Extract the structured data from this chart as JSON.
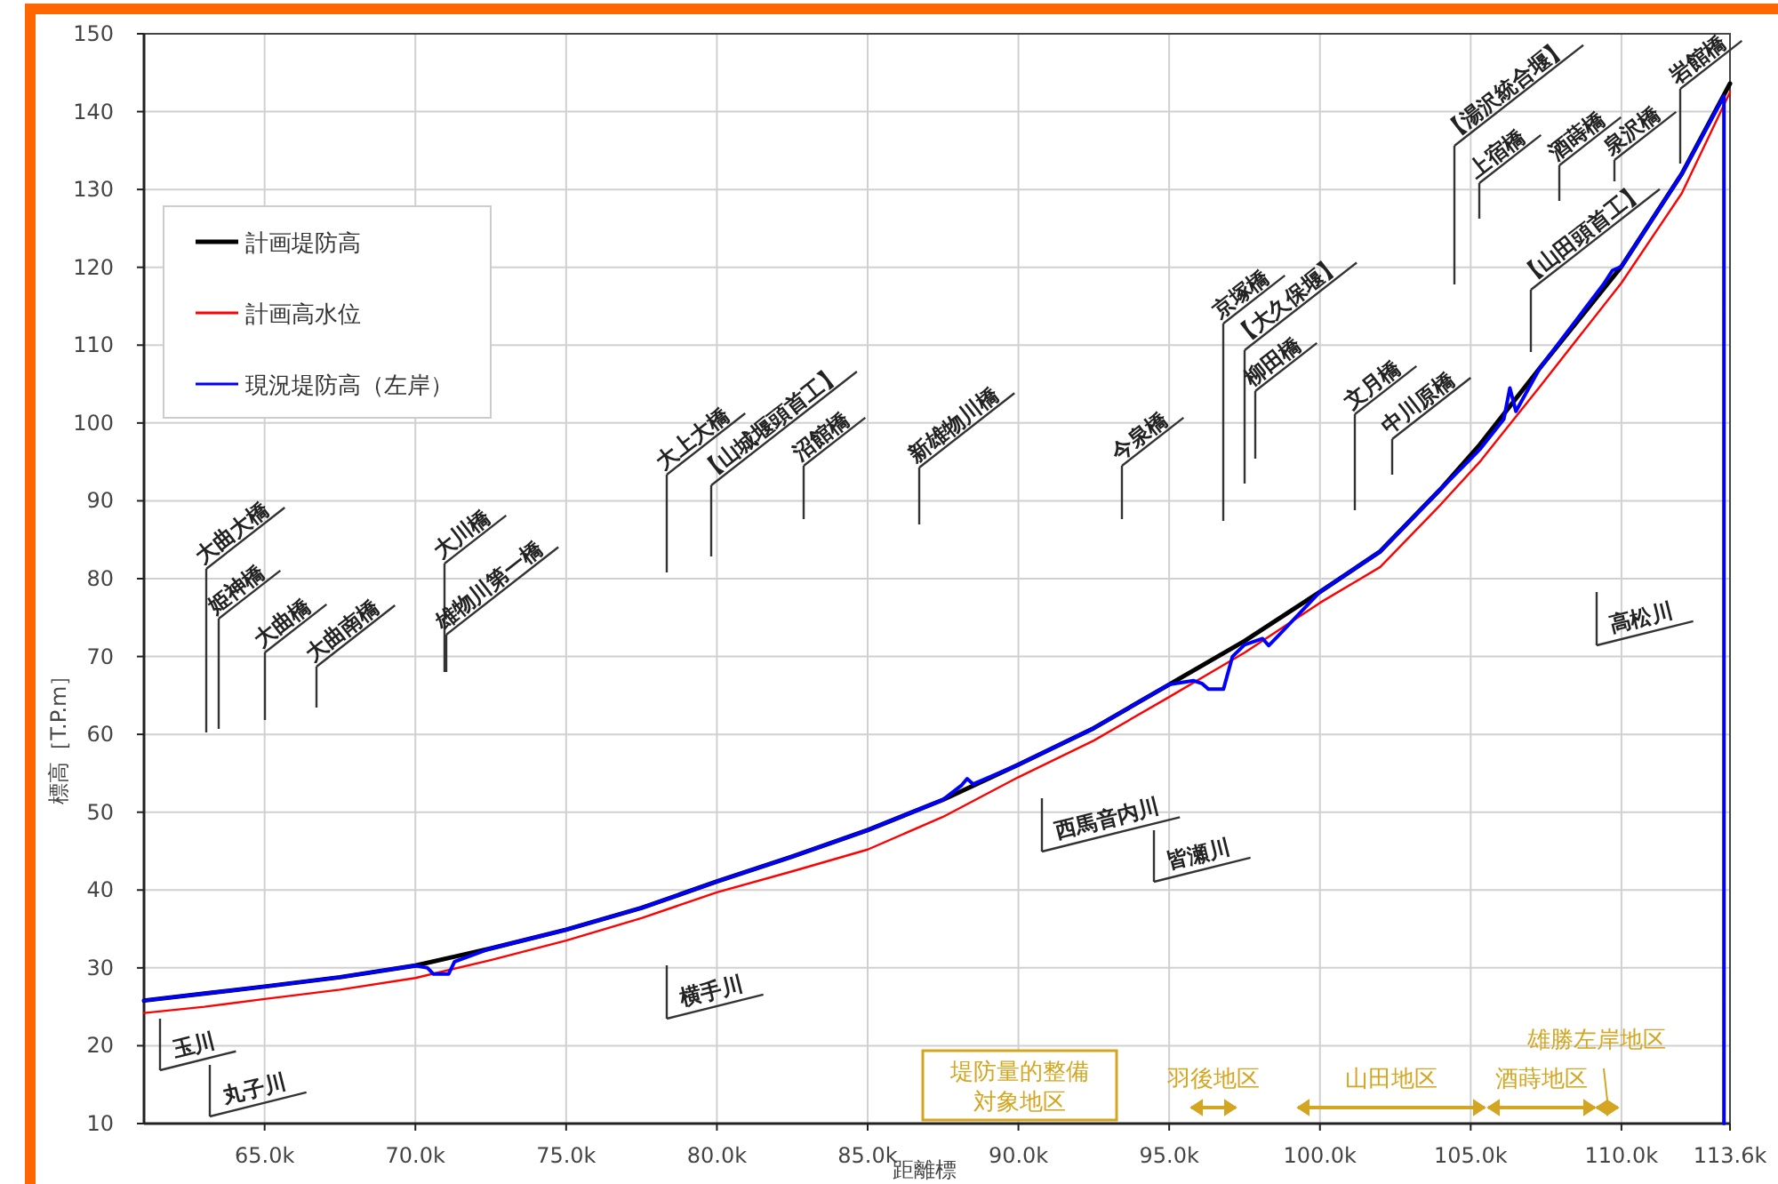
{
  "chart_data": {
    "type": "line",
    "xlabel": "距離標",
    "ylabel": "標高［T.P.m］",
    "xlim": [
      61,
      113.6
    ],
    "ylim": [
      10,
      150
    ],
    "xticks": [
      {
        "value": 65,
        "label": "65.0k"
      },
      {
        "value": 70,
        "label": "70.0k"
      },
      {
        "value": 75,
        "label": "75.0k"
      },
      {
        "value": 80,
        "label": "80.0k"
      },
      {
        "value": 85,
        "label": "85.0k"
      },
      {
        "value": 90,
        "label": "90.0k"
      },
      {
        "value": 95,
        "label": "95.0k"
      },
      {
        "value": 100,
        "label": "100.0k"
      },
      {
        "value": 105,
        "label": "105.0k"
      },
      {
        "value": 110,
        "label": "110.0k"
      },
      {
        "value": 113.6,
        "label": "113.6k"
      }
    ],
    "yticks": [
      10,
      20,
      30,
      40,
      50,
      60,
      70,
      80,
      90,
      100,
      110,
      120,
      130,
      140,
      150
    ],
    "grid": true,
    "legend": "top left",
    "marker": "none",
    "line_style": "solid",
    "series": [
      {
        "name": "計画堤防高",
        "color": "#000000",
        "x": [
          61,
          63,
          65,
          67.5,
          70,
          72.5,
          75,
          77.5,
          80,
          82.5,
          85,
          87.5,
          90,
          92.5,
          95,
          97.5,
          100,
          102,
          104,
          105.3,
          107.3,
          110,
          112,
          113.6
        ],
        "values": [
          25.8,
          26.7,
          27.6,
          28.8,
          30.3,
          32.5,
          34.9,
          37.7,
          41.1,
          44.3,
          47.7,
          51.6,
          56.1,
          60.8,
          66.4,
          72.0,
          78.3,
          83.5,
          91.5,
          97.2,
          107.1,
          120.1,
          132,
          143.6
        ]
      },
      {
        "name": "計画高水位",
        "color": "#ff0000",
        "x": [
          61,
          63,
          65,
          67.5,
          70,
          72.5,
          75,
          77.5,
          80,
          82.5,
          85,
          87.5,
          90,
          92.5,
          95,
          97.5,
          100,
          102,
          104,
          105.3,
          107.3,
          110,
          112,
          113.6
        ],
        "values": [
          24.2,
          25.0,
          26.0,
          27.2,
          28.7,
          31.0,
          33.5,
          36.4,
          39.7,
          42.4,
          45.2,
          49.4,
          54.5,
          59.2,
          64.8,
          70.5,
          76.9,
          81.5,
          89.5,
          95.0,
          104.7,
          118,
          129.5,
          142.5
        ]
      },
      {
        "name": "現況堤防高（左岸）",
        "color": "#0000ff",
        "x": [
          61,
          63,
          65,
          67.5,
          70,
          70.4,
          70.6,
          71.1,
          71.3,
          72.5,
          75,
          77.5,
          80,
          82.5,
          85,
          87.5,
          88.1,
          88.3,
          88.5,
          90,
          92.5,
          95,
          95.8,
          96.1,
          96.3,
          96.8,
          97.1,
          97.5,
          98.1,
          98.3,
          98.6,
          100,
          102,
          104,
          104.9,
          105.3,
          106.1,
          106.3,
          106.5,
          107.3,
          109.4,
          109.7,
          110,
          112,
          113.4,
          113.4
        ],
        "values": [
          25.8,
          26.7,
          27.6,
          28.8,
          30.3,
          30.0,
          29.2,
          29.2,
          30.8,
          32.5,
          34.9,
          37.7,
          41.1,
          44.3,
          47.7,
          51.6,
          53.4,
          54.3,
          53.6,
          56.1,
          60.8,
          66.4,
          66.9,
          66.5,
          65.8,
          65.8,
          70.0,
          71.5,
          72.3,
          71.4,
          72.6,
          78.3,
          83.5,
          91.5,
          95.0,
          96.6,
          100.5,
          104.5,
          101.5,
          107.1,
          117.8,
          119.6,
          120.1,
          132,
          142,
          10
        ]
      }
    ],
    "annotations": [
      "大曲大橋",
      "姫神橋",
      "大曲橋",
      "大曲南橋",
      "大川橋",
      "雄物川第一橋",
      "大上大橋",
      "【山城堰頭首工】",
      "沼館橋",
      "新雄物川橋",
      "今泉橋",
      "京塚橋",
      "【大久保堰】",
      "柳田橋",
      "文月橋",
      "中川原橋",
      "【湯沢統合堰】",
      "上宿橋",
      "【山田頭首工】",
      "酒蒔橋",
      "泉沢橋",
      "岩館橋",
      "玉川",
      "丸子川",
      "横手川",
      "西馬音内川",
      "皆瀬川",
      "高松川",
      "堤防量的整備",
      "対象地区",
      "羽後地区",
      "山田地区",
      "酒蒔地区",
      "雄勝左岸地区"
    ]
  }
}
